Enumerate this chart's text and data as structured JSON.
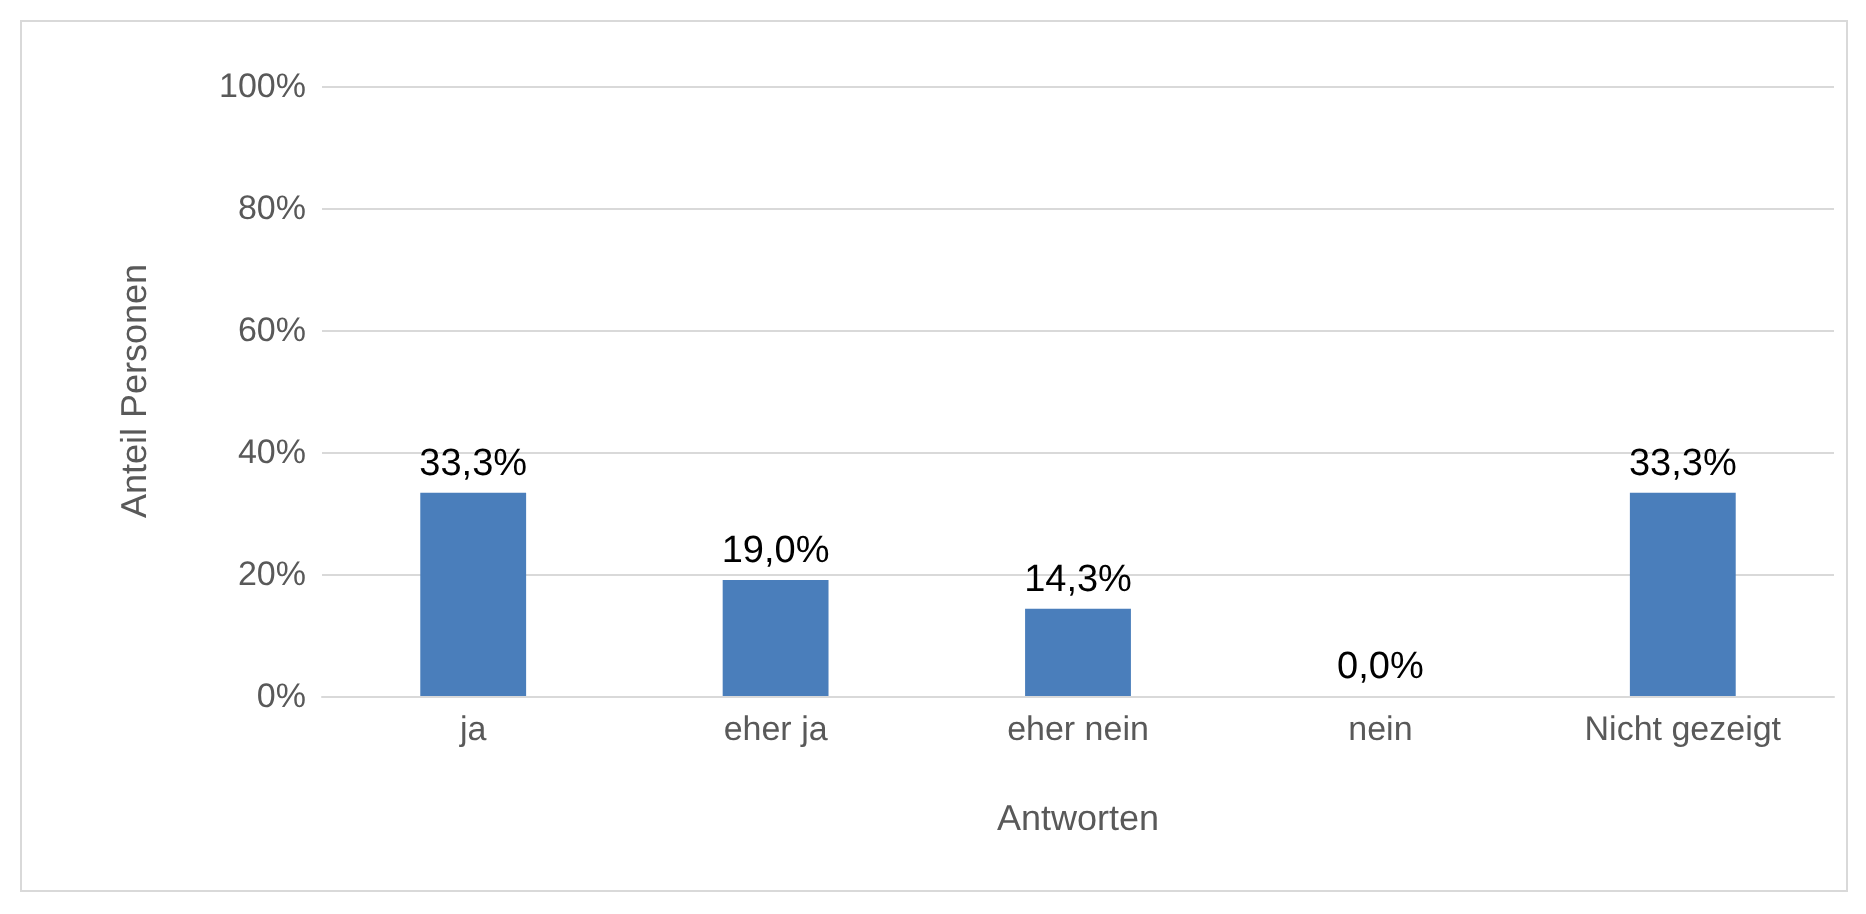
{
  "chart_data": {
    "type": "bar",
    "xlabel": "Antworten",
    "ylabel": "Anteil Personen",
    "categories": [
      "ja",
      "eher ja",
      "eher nein",
      "nein",
      "Nicht gezeigt"
    ],
    "values": [
      33.3,
      19.0,
      14.3,
      0.0,
      33.3
    ],
    "value_labels": [
      "33,3%",
      "19,0%",
      "14,3%",
      "0,0%",
      "33,3%"
    ],
    "color": "#4a7ebb",
    "ylim": [
      0,
      100
    ],
    "yticks": [
      {
        "value": 0,
        "label": "0%"
      },
      {
        "value": 20,
        "label": "20%"
      },
      {
        "value": 40,
        "label": "40%"
      },
      {
        "value": 60,
        "label": "60%"
      },
      {
        "value": 80,
        "label": "80%"
      },
      {
        "value": 100,
        "label": "100%"
      }
    ],
    "grid": "y"
  }
}
